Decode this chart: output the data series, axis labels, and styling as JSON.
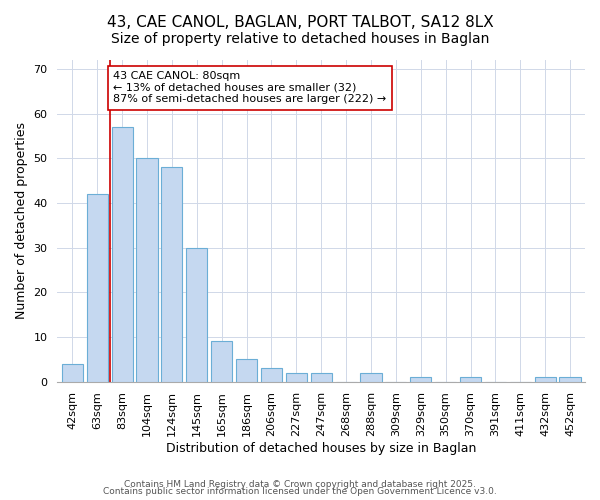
{
  "title_line1": "43, CAE CANOL, BAGLAN, PORT TALBOT, SA12 8LX",
  "title_line2": "Size of property relative to detached houses in Baglan",
  "xlabel": "Distribution of detached houses by size in Baglan",
  "ylabel": "Number of detached properties",
  "categories": [
    "42sqm",
    "63sqm",
    "83sqm",
    "104sqm",
    "124sqm",
    "145sqm",
    "165sqm",
    "186sqm",
    "206sqm",
    "227sqm",
    "247sqm",
    "268sqm",
    "288sqm",
    "309sqm",
    "329sqm",
    "350sqm",
    "370sqm",
    "391sqm",
    "411sqm",
    "432sqm",
    "452sqm"
  ],
  "values": [
    4,
    42,
    57,
    50,
    48,
    30,
    9,
    5,
    3,
    2,
    2,
    0,
    2,
    0,
    1,
    0,
    1,
    0,
    0,
    1,
    1
  ],
  "bar_color": "#c5d8f0",
  "bar_edge_color": "#6baed6",
  "red_line_x": 2,
  "red_line_color": "#cc0000",
  "annotation_text_line1": "43 CAE CANOL: 80sqm",
  "annotation_text_line2": "← 13% of detached houses are smaller (32)",
  "annotation_text_line3": "87% of semi-detached houses are larger (222) →",
  "annotation_box_facecolor": "white",
  "annotation_box_edgecolor": "#cc0000",
  "ylim": [
    0,
    72
  ],
  "yticks": [
    0,
    10,
    20,
    30,
    40,
    50,
    60,
    70
  ],
  "grid_color": "#d0d8e8",
  "bg_color": "#ffffff",
  "footer_line1": "Contains HM Land Registry data © Crown copyright and database right 2025.",
  "footer_line2": "Contains public sector information licensed under the Open Government Licence v3.0.",
  "title_fontsize": 11,
  "subtitle_fontsize": 10,
  "axis_label_fontsize": 9,
  "tick_fontsize": 8,
  "annotation_fontsize": 8,
  "footer_fontsize": 6.5
}
